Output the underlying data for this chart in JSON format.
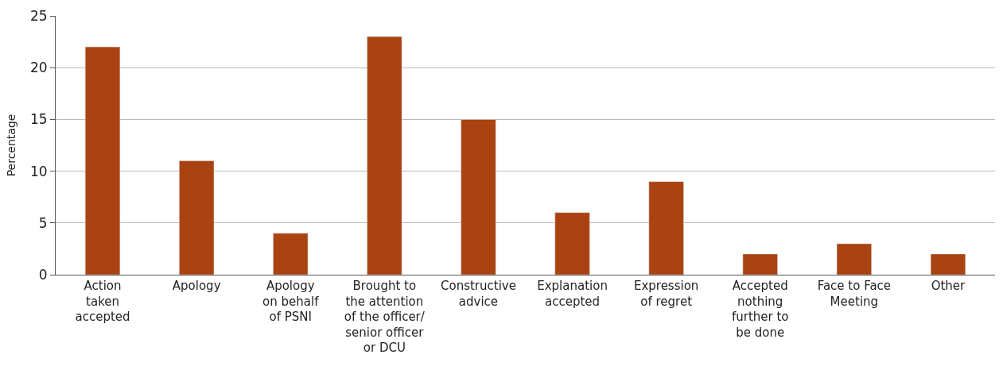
{
  "chart_data": {
    "type": "bar",
    "ylabel": "Percentage",
    "categories": [
      "Action\ntaken\naccepted",
      "Apology",
      "Apology\non behalf\nof PSNI",
      "Brought to\nthe attention\nof the officer/\nsenior officer\nor DCU",
      "Constructive\nadvice",
      "Explanation\naccepted",
      "Expression\nof regret",
      "Accepted\nnothing\nfurther to\nbe done",
      "Face to Face\nMeeting",
      "Other"
    ],
    "values": [
      22,
      11,
      4,
      23,
      15,
      6,
      9,
      2,
      3,
      2
    ],
    "color": "#a94412",
    "ylim": [
      0,
      25
    ],
    "yticks": [
      0,
      5,
      10,
      15,
      20,
      25
    ],
    "grid": "y"
  }
}
